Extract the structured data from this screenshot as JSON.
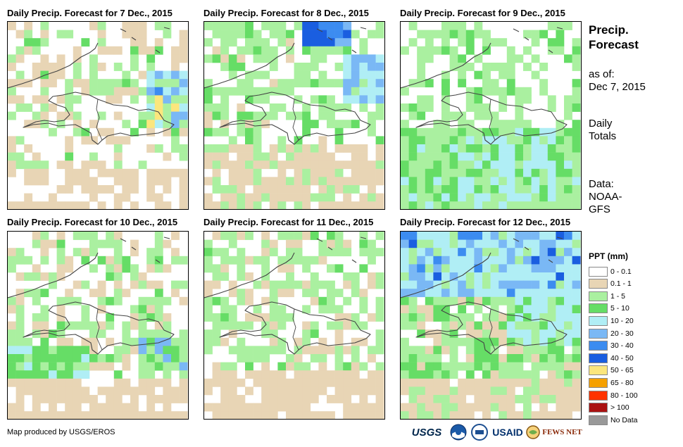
{
  "panels": [
    {
      "title": "Daily Precip. Forecast for 7 Dec., 2015",
      "regime": "dec7"
    },
    {
      "title": "Daily Precip. Forecast for 8 Dec., 2015",
      "regime": "dec8"
    },
    {
      "title": "Daily Precip. Forecast for 9 Dec., 2015",
      "regime": "dec9"
    },
    {
      "title": "Daily Precip. Forecast for 10 Dec., 2015",
      "regime": "dec10"
    },
    {
      "title": "Daily Precip. Forecast for 11 Dec., 2015",
      "regime": "dec11"
    },
    {
      "title": "Daily Precip. Forecast for 12 Dec., 2015",
      "regime": "dec12"
    }
  ],
  "sidebar": {
    "title_line1": "Precip.",
    "title_line2": "Forecast",
    "asof_line1": "as of:",
    "asof_line2": "Dec 7, 2015",
    "totals_line1": "Daily",
    "totals_line2": "Totals",
    "data_line1": "Data:",
    "data_line2": "NOAA-",
    "data_line3": "GFS"
  },
  "legend": {
    "title": "PPT (mm)",
    "items": [
      {
        "label": "0 - 0.1",
        "color": "#ffffff"
      },
      {
        "label": "0.1 - 1",
        "color": "#e8d5b5"
      },
      {
        "label": "1 - 5",
        "color": "#aaf0a0"
      },
      {
        "label": "5 - 10",
        "color": "#66dd66"
      },
      {
        "label": "10 - 20",
        "color": "#b0eef5"
      },
      {
        "label": "20 - 30",
        "color": "#7ab8f5"
      },
      {
        "label": "30 - 40",
        "color": "#3c8cf0"
      },
      {
        "label": "40 - 50",
        "color": "#1a5ee0"
      },
      {
        "label": "50 - 65",
        "color": "#fbe67d"
      },
      {
        "label": "65 - 80",
        "color": "#f5a000"
      },
      {
        "label": "80 - 100",
        "color": "#ff3300"
      },
      {
        "label": "> 100",
        "color": "#aa1111"
      },
      {
        "label": "No Data",
        "color": "#999999"
      }
    ]
  },
  "footer": {
    "credit": "Map produced by USGS/EROS",
    "logos": [
      "USGS",
      "NOAA",
      "USDA",
      "USAID",
      "FEWS NET"
    ]
  }
}
